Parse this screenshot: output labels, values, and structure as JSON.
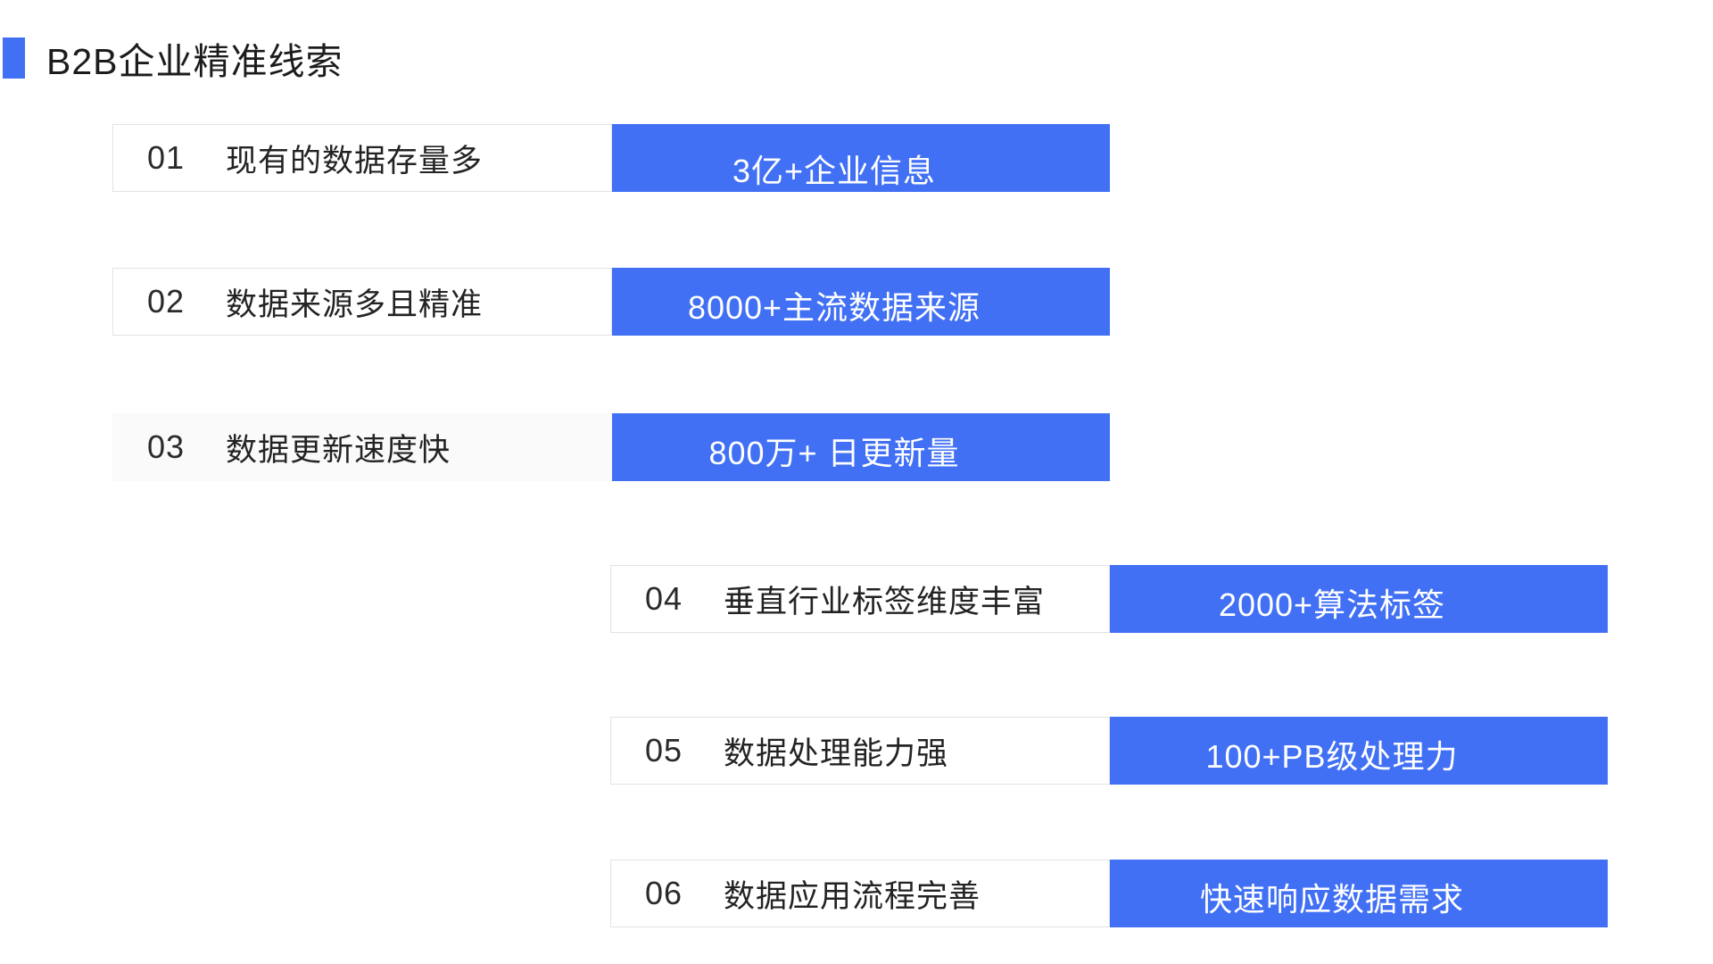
{
  "colors": {
    "accent": "#4170f5"
  },
  "header": {
    "title": "B2B企业精准线索"
  },
  "rows": [
    {
      "number": "01",
      "label": "现有的数据存量多",
      "badge": "3亿+企业信息"
    },
    {
      "number": "02",
      "label": "数据来源多且精准",
      "badge": "8000+主流数据来源"
    },
    {
      "number": "03",
      "label": "数据更新速度快",
      "badge": "800万+ 日更新量"
    },
    {
      "number": "04",
      "label": "垂直行业标签维度丰富",
      "badge": "2000+算法标签"
    },
    {
      "number": "05",
      "label": "数据处理能力强",
      "badge": "100+PB级处理力"
    },
    {
      "number": "06",
      "label": "数据应用流程完善",
      "badge": "快速响应数据需求"
    }
  ]
}
